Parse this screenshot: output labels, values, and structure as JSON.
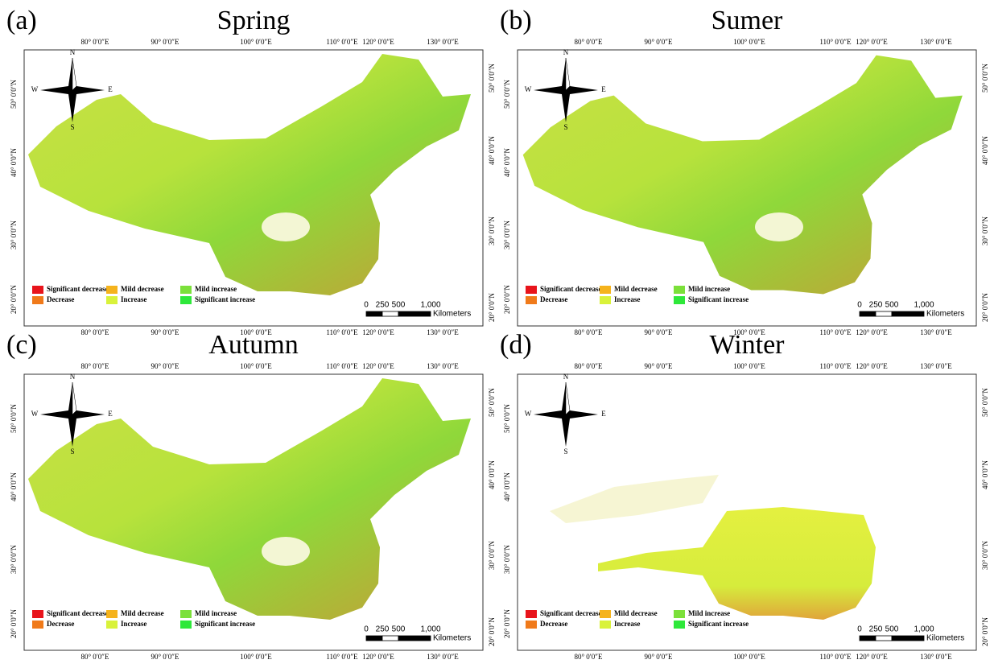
{
  "panels": [
    {
      "label": "(a)",
      "title": "Spring"
    },
    {
      "label": "(b)",
      "title": "Sumer"
    },
    {
      "label": "(c)",
      "title": "Autumn"
    },
    {
      "label": "(d)",
      "title": "Winter"
    }
  ],
  "lon_labels": [
    "80° 0′0″E",
    "90° 0′0″E",
    "100° 0′0″E",
    "110° 0′0″E",
    "120° 0′0″E",
    "130° 0′0″E"
  ],
  "lat_labels": [
    "50° 0′0″N",
    "40° 0′0″N",
    "30° 0′0″N",
    "20° 0′0″N"
  ],
  "compass": {
    "n": "N",
    "s": "S",
    "w": "W",
    "e": "E"
  },
  "legend": [
    {
      "name": "Significant decrease",
      "color": "#e8141b"
    },
    {
      "name": "Mild decrease",
      "color": "#f5b31c"
    },
    {
      "name": "Mild increase",
      "color": "#7be03a"
    },
    {
      "name": "Decrease",
      "color": "#f07a1a"
    },
    {
      "name": "Increase",
      "color": "#d9f23a"
    },
    {
      "name": "Significant increase",
      "color": "#2ee83a"
    }
  ],
  "scale": {
    "labels": [
      "0",
      "250",
      "500",
      "1,000"
    ],
    "unit": "Kilometers"
  }
}
